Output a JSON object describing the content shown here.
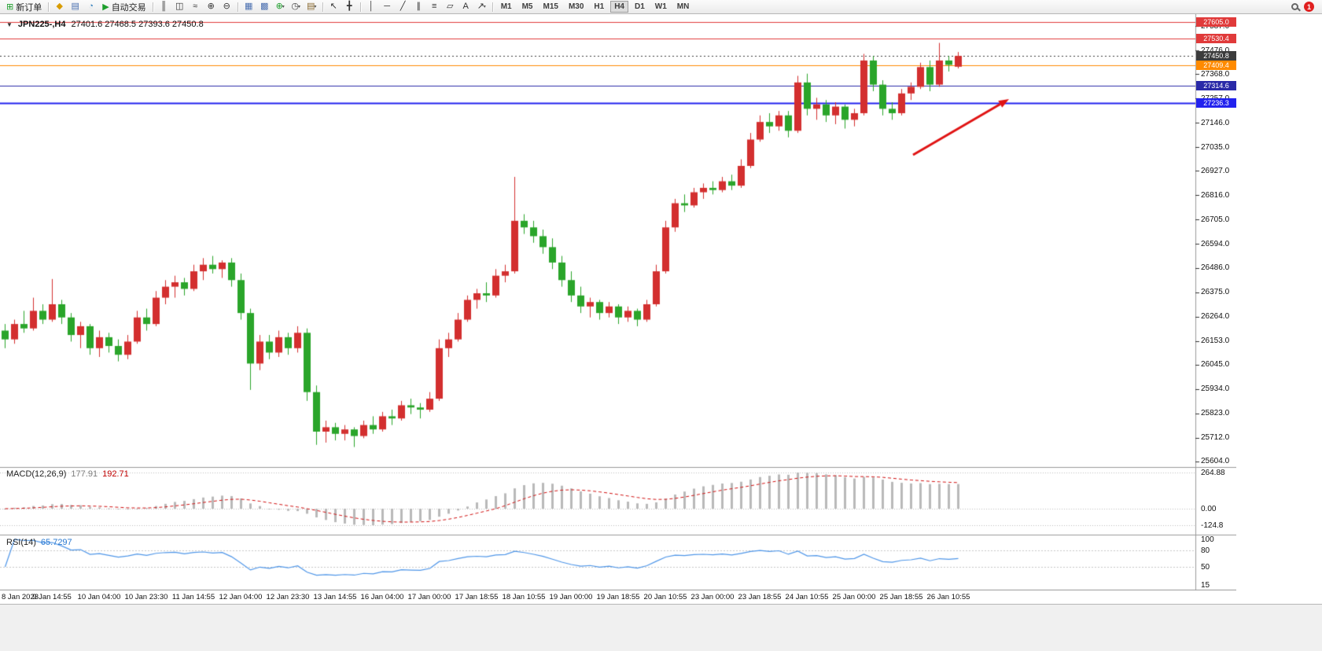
{
  "toolbar": {
    "new_order_label": "新订单",
    "auto_trading_label": "自动交易",
    "timeframes": [
      "M1",
      "M5",
      "M15",
      "M30",
      "H1",
      "H4",
      "D1",
      "W1",
      "MN"
    ],
    "active_timeframe": "H4",
    "notification_count": "1",
    "items": [
      {
        "type": "btn",
        "name": "new-order-button",
        "glyph": "⊞",
        "glyph_color": "#1d9e2c",
        "label_key": "new_order_label"
      },
      {
        "type": "sep"
      },
      {
        "type": "ico",
        "name": "new-chart-icon",
        "glyph": "◆",
        "glyph_color": "#d89c00"
      },
      {
        "type": "ico",
        "name": "profiles-icon",
        "glyph": "▤",
        "glyph_color": "#4a6fb0"
      },
      {
        "type": "ico",
        "name": "data-window-icon",
        "glyph": "◔",
        "glyph_color": "#3f87c0"
      },
      {
        "type": "btn",
        "name": "auto-trading-button",
        "glyph": "▶",
        "glyph_color": "#1d9e2c",
        "label_key": "auto_trading_label"
      },
      {
        "type": "sep"
      },
      {
        "type": "ico",
        "name": "bar-chart-icon",
        "glyph": "║",
        "glyph_color": "#333333"
      },
      {
        "type": "ico",
        "name": "candlestick-chart-icon",
        "glyph": "◫",
        "glyph_color": "#333333"
      },
      {
        "type": "ico",
        "name": "line-chart-icon",
        "glyph": "≈",
        "glyph_color": "#333333"
      },
      {
        "type": "ico",
        "name": "zoom-in-icon",
        "glyph": "⊕",
        "glyph_color": "#333333"
      },
      {
        "type": "ico",
        "name": "zoom-out-icon",
        "glyph": "⊖",
        "glyph_color": "#333333"
      },
      {
        "type": "sep"
      },
      {
        "type": "ico",
        "name": "tile-windows-icon",
        "glyph": "▦",
        "glyph_color": "#4a6fb0"
      },
      {
        "type": "ico",
        "name": "cascade-windows-icon",
        "glyph": "▩",
        "glyph_color": "#4a6fb0"
      },
      {
        "type": "ico",
        "name": "indicators-icon",
        "glyph": "⊕",
        "glyph_color": "#1d9e2c",
        "dropdown": true
      },
      {
        "type": "ico",
        "name": "periods-icon",
        "glyph": "◷",
        "glyph_color": "#444444",
        "dropdown": true
      },
      {
        "type": "ico",
        "name": "templates-icon",
        "glyph": "▤",
        "glyph_color": "#8a6a30",
        "dropdown": true
      },
      {
        "type": "sep"
      },
      {
        "type": "ico",
        "name": "cursor-icon",
        "glyph": "↖",
        "glyph_color": "#333333"
      },
      {
        "type": "ico",
        "name": "crosshair-icon",
        "glyph": "╋",
        "glyph_color": "#333333"
      },
      {
        "type": "sep"
      },
      {
        "type": "ico",
        "name": "vertical-line-icon",
        "glyph": "│",
        "glyph_color": "#333333"
      },
      {
        "type": "ico",
        "name": "horizontal-line-icon",
        "glyph": "─",
        "glyph_color": "#333333"
      },
      {
        "type": "ico",
        "name": "trendline-icon",
        "glyph": "╱",
        "glyph_color": "#333333"
      },
      {
        "type": "ico",
        "name": "equidistant-channel-icon",
        "glyph": "∥",
        "glyph_color": "#333333"
      },
      {
        "type": "ico",
        "name": "fibonacci-icon",
        "glyph": "≡",
        "glyph_color": "#333333"
      },
      {
        "type": "ico",
        "name": "shapes-icon",
        "glyph": "▱",
        "glyph_color": "#333333"
      },
      {
        "type": "ico",
        "name": "text-icon",
        "glyph": "A",
        "glyph_color": "#333333"
      },
      {
        "type": "ico",
        "name": "arrow-tools-icon",
        "glyph": "↗",
        "glyph_color": "#333333",
        "dropdown": true
      },
      {
        "type": "sep"
      }
    ]
  },
  "chart": {
    "title": "JPN225-,H4",
    "ohlc_text": "27401.6 27468.5 27393.6 27450.8",
    "dropdown_marker": "▼"
  },
  "macd": {
    "label": "MACD(12,26,9)",
    "main_value": "177.91",
    "signal_value": "192.71",
    "axis": [
      "264.88",
      "0.00",
      "-124.8"
    ]
  },
  "rsi": {
    "label": "RSI(14)",
    "value": "65.7297",
    "axis": [
      "100",
      "80",
      "50",
      "15"
    ]
  },
  "chart_data": {
    "type": "candlestick",
    "symbol": "JPN225-",
    "timeframe": "H4",
    "last_ohlc": {
      "open": 27401.6,
      "high": 27468.5,
      "low": 27393.6,
      "close": 27450.8
    },
    "up_color": "#d32f2f",
    "down_color": "#2aa52a",
    "y_range": [
      25586,
      27641
    ],
    "y_ticks": [
      "27587.0",
      "27476.0",
      "27368.0",
      "27257.0",
      "27146.0",
      "27035.0",
      "26927.0",
      "26816.0",
      "26705.0",
      "26594.0",
      "26486.0",
      "26375.0",
      "26264.0",
      "26153.0",
      "26045.0",
      "25934.0",
      "25823.0",
      "25712.0",
      "25604.0"
    ],
    "x_labels": [
      "8 Jan 2023",
      "9 Jan 14:55",
      "10 Jan 04:00",
      "10 Jan 23:30",
      "11 Jan 14:55",
      "12 Jan 04:00",
      "12 Jan 23:30",
      "13 Jan 14:55",
      "16 Jan 04:00",
      "17 Jan 00:00",
      "17 Jan 18:55",
      "18 Jan 10:55",
      "19 Jan 00:00",
      "19 Jan 18:55",
      "20 Jan 10:55",
      "23 Jan 00:00",
      "23 Jan 18:55",
      "24 Jan 10:55",
      "25 Jan 00:00",
      "25 Jan 18:55",
      "26 Jan 10:55"
    ],
    "candles_per_label": 5,
    "horizontal_levels": [
      {
        "price": 27605.0,
        "label": "27605.0",
        "color": "#e03a3a",
        "style": "solid",
        "width": 1
      },
      {
        "price": 27530.4,
        "label": "27530.4",
        "color": "#e03a3a",
        "style": "solid",
        "width": 1
      },
      {
        "price": 27450.8,
        "label": "27450.8",
        "color": "#3c3c3c",
        "style": "dotted",
        "width": 1
      },
      {
        "price": 27409.4,
        "label": "27409.4",
        "color": "#ff8a00",
        "style": "solid",
        "width": 1
      },
      {
        "price": 27314.6,
        "label": "27314.6",
        "color": "#2a2aa8",
        "style": "solid",
        "width": 1
      },
      {
        "price": 27236.3,
        "label": "27236.3",
        "color": "#2222ee",
        "style": "solid",
        "width": 2
      }
    ],
    "arrow_annotation": {
      "color": "#e01313",
      "from": [
        1161,
        197
      ],
      "to": [
        1283,
        126
      ]
    },
    "indicators": [
      {
        "type": "MACD",
        "params": [
          12,
          26,
          9
        ],
        "values": [
          177.91,
          192.71
        ],
        "axis_marks": [
          264.88,
          0.0,
          -124.8
        ]
      },
      {
        "type": "RSI",
        "params": [
          14
        ],
        "value": 65.7297,
        "levels": [
          80,
          50
        ],
        "axis_marks": [
          100,
          80,
          50,
          15
        ]
      }
    ],
    "candles": [
      [
        26200,
        26230,
        26120,
        26160
      ],
      [
        26160,
        26250,
        26140,
        26230
      ],
      [
        26230,
        26290,
        26190,
        26210
      ],
      [
        26210,
        26350,
        26200,
        26290
      ],
      [
        26290,
        26320,
        26230,
        26250
      ],
      [
        26250,
        26435,
        26240,
        26320
      ],
      [
        26320,
        26340,
        26230,
        26260
      ],
      [
        26260,
        26280,
        26150,
        26180
      ],
      [
        26180,
        26240,
        26120,
        26220
      ],
      [
        26220,
        26230,
        26090,
        26120
      ],
      [
        26120,
        26200,
        26080,
        26170
      ],
      [
        26170,
        26190,
        26100,
        26130
      ],
      [
        26130,
        26160,
        26060,
        26090
      ],
      [
        26090,
        26180,
        26070,
        26150
      ],
      [
        26150,
        26290,
        26140,
        26260
      ],
      [
        26260,
        26300,
        26200,
        26230
      ],
      [
        26230,
        26380,
        26220,
        26350
      ],
      [
        26350,
        26430,
        26320,
        26400
      ],
      [
        26400,
        26450,
        26350,
        26420
      ],
      [
        26420,
        26440,
        26360,
        26390
      ],
      [
        26390,
        26500,
        26380,
        26470
      ],
      [
        26470,
        26530,
        26430,
        26500
      ],
      [
        26500,
        26540,
        26460,
        26480
      ],
      [
        26480,
        26520,
        26440,
        26510
      ],
      [
        26510,
        26530,
        26400,
        26430
      ],
      [
        26430,
        26460,
        26250,
        26280
      ],
      [
        26280,
        26300,
        25930,
        26050
      ],
      [
        26050,
        26180,
        26020,
        26150
      ],
      [
        26150,
        26180,
        26070,
        26100
      ],
      [
        26100,
        26200,
        26080,
        26170
      ],
      [
        26170,
        26190,
        26090,
        26120
      ],
      [
        26120,
        26220,
        26100,
        26190
      ],
      [
        26190,
        26210,
        25880,
        25920
      ],
      [
        25920,
        25950,
        25680,
        25740
      ],
      [
        25740,
        25790,
        25690,
        25760
      ],
      [
        25760,
        25780,
        25700,
        25730
      ],
      [
        25730,
        25770,
        25700,
        25750
      ],
      [
        25750,
        25760,
        25670,
        25720
      ],
      [
        25720,
        25790,
        25710,
        25770
      ],
      [
        25770,
        25810,
        25730,
        25750
      ],
      [
        25750,
        25830,
        25740,
        25810
      ],
      [
        25810,
        25840,
        25770,
        25800
      ],
      [
        25800,
        25880,
        25790,
        25860
      ],
      [
        25860,
        25890,
        25820,
        25850
      ],
      [
        25850,
        25870,
        25800,
        25840
      ],
      [
        25840,
        25920,
        25830,
        25890
      ],
      [
        25890,
        26160,
        25880,
        26120
      ],
      [
        26120,
        26190,
        26080,
        26160
      ],
      [
        26160,
        26280,
        26150,
        26250
      ],
      [
        26250,
        26360,
        26240,
        26340
      ],
      [
        26340,
        26390,
        26300,
        26370
      ],
      [
        26370,
        26420,
        26330,
        26360
      ],
      [
        26360,
        26480,
        26350,
        26450
      ],
      [
        26450,
        26500,
        26420,
        26470
      ],
      [
        26470,
        26900,
        26460,
        26700
      ],
      [
        26700,
        26730,
        26640,
        26670
      ],
      [
        26670,
        26700,
        26600,
        26630
      ],
      [
        26630,
        26660,
        26550,
        26580
      ],
      [
        26580,
        26620,
        26480,
        26510
      ],
      [
        26510,
        26540,
        26400,
        26430
      ],
      [
        26430,
        26470,
        26330,
        26360
      ],
      [
        26360,
        26400,
        26280,
        26310
      ],
      [
        26310,
        26350,
        26260,
        26330
      ],
      [
        26330,
        26340,
        26250,
        26280
      ],
      [
        26280,
        26330,
        26260,
        26310
      ],
      [
        26310,
        26320,
        26230,
        26260
      ],
      [
        26260,
        26310,
        26240,
        26290
      ],
      [
        26290,
        26300,
        26220,
        26250
      ],
      [
        26250,
        26340,
        26240,
        26320
      ],
      [
        26320,
        26500,
        26310,
        26470
      ],
      [
        26470,
        26700,
        26460,
        26670
      ],
      [
        26670,
        26800,
        26650,
        26780
      ],
      [
        26780,
        26820,
        26740,
        26770
      ],
      [
        26770,
        26850,
        26760,
        26830
      ],
      [
        26830,
        26870,
        26800,
        26850
      ],
      [
        26850,
        26880,
        26820,
        26840
      ],
      [
        26840,
        26900,
        26830,
        26880
      ],
      [
        26880,
        26910,
        26840,
        26860
      ],
      [
        26860,
        26980,
        26850,
        26950
      ],
      [
        26950,
        27100,
        26940,
        27070
      ],
      [
        27070,
        27180,
        27060,
        27150
      ],
      [
        27150,
        27190,
        27100,
        27130
      ],
      [
        27130,
        27200,
        27110,
        27180
      ],
      [
        27180,
        27200,
        27080,
        27110
      ],
      [
        27110,
        27360,
        27100,
        27330
      ],
      [
        27330,
        27370,
        27180,
        27210
      ],
      [
        27210,
        27260,
        27160,
        27230
      ],
      [
        27230,
        27250,
        27150,
        27180
      ],
      [
        27180,
        27240,
        27140,
        27220
      ],
      [
        27220,
        27230,
        27120,
        27160
      ],
      [
        27160,
        27210,
        27130,
        27190
      ],
      [
        27190,
        27460,
        27180,
        27430
      ],
      [
        27430,
        27450,
        27290,
        27320
      ],
      [
        27320,
        27340,
        27180,
        27210
      ],
      [
        27210,
        27240,
        27160,
        27190
      ],
      [
        27190,
        27300,
        27180,
        27280
      ],
      [
        27280,
        27330,
        27250,
        27310
      ],
      [
        27310,
        27420,
        27300,
        27400
      ],
      [
        27400,
        27430,
        27290,
        27320
      ],
      [
        27320,
        27510,
        27310,
        27430
      ],
      [
        27430,
        27450,
        27380,
        27410
      ],
      [
        27401.6,
        27468.5,
        27393.6,
        27450.8
      ]
    ]
  }
}
